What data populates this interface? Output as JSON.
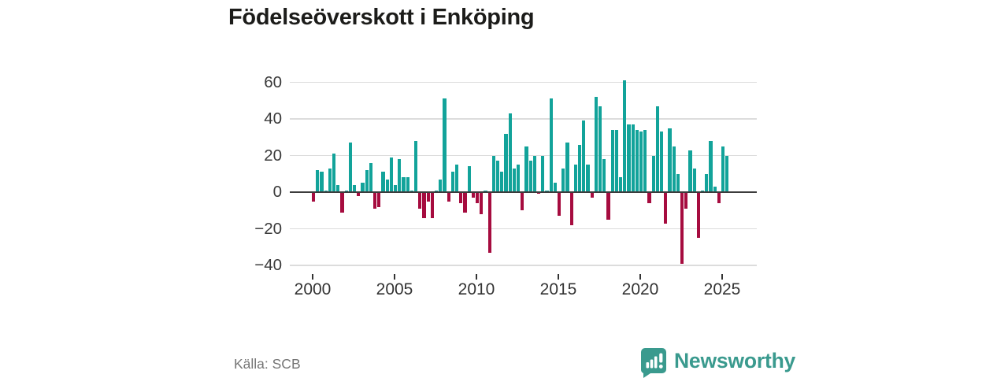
{
  "title": "Födelseöverskott i Enköping",
  "source_note": "Källa: SCB",
  "brand": {
    "name": "Newsworthy",
    "icon": "bar-chart-speech-bubble-icon",
    "color": "#3a9a8e"
  },
  "colors": {
    "positive_bar": "#12a39a",
    "negative_bar": "#a60c3f",
    "gridline": "#dcdcdc",
    "zero_line": "#3c3c3c",
    "axis_text": "#3a3a3a",
    "title_text": "#1c1c1a",
    "source_text": "#757575",
    "background": "#ffffff"
  },
  "chart_data": {
    "type": "bar",
    "title": "Födelseöverskott i Enköping",
    "frequency": "quarterly",
    "start": "2000 Q1",
    "end": "2025 Q2",
    "ylim": [
      -44,
      64
    ],
    "grid": true,
    "y_ticks": [
      60,
      40,
      20,
      0,
      -20,
      -40
    ],
    "y_tick_labels": [
      "60",
      "40",
      "20",
      "0",
      "−20",
      "−40"
    ],
    "x_tick_labels": [
      "2000",
      "2005",
      "2010",
      "2015",
      "2020",
      "2025"
    ],
    "x_tick_quarter_index": [
      0,
      20,
      40,
      60,
      80,
      100
    ],
    "values": [
      -5,
      12,
      11,
      1,
      13,
      21,
      4,
      -11,
      1,
      27,
      4,
      -2,
      5,
      12,
      16,
      -9,
      -8,
      11,
      7,
      19,
      4,
      18,
      8,
      8,
      1,
      28,
      -9,
      -14,
      -5,
      -14,
      1,
      7,
      51,
      -5,
      11,
      15,
      -6,
      -11,
      14,
      -3,
      -6,
      -12,
      1,
      -33,
      20,
      17,
      11,
      32,
      43,
      13,
      15,
      -10,
      25,
      17,
      20,
      -1,
      20,
      1,
      51,
      5,
      -13,
      13,
      27,
      -18,
      15,
      26,
      39,
      15,
      -3,
      52,
      47,
      18,
      -15,
      34,
      34,
      8,
      61,
      37,
      37,
      34,
      33,
      34,
      -6,
      20,
      47,
      33,
      -17,
      35,
      25,
      10,
      -39,
      -9,
      23,
      13,
      -25,
      1,
      10,
      28,
      3,
      -6,
      25,
      20
    ]
  }
}
